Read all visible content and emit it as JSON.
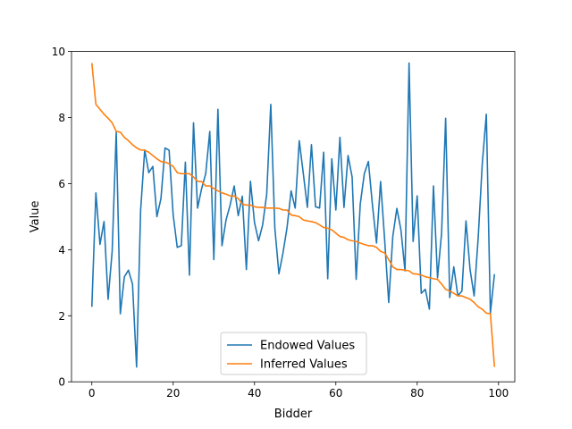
{
  "chart_data": {
    "type": "line",
    "title": "",
    "xlabel": "Bidder",
    "ylabel": "Value",
    "xlim": [
      -5,
      104
    ],
    "ylim": [
      0,
      10
    ],
    "xticks": [
      0,
      20,
      40,
      60,
      80,
      100
    ],
    "yticks": [
      0,
      2,
      4,
      6,
      8,
      10
    ],
    "grid": false,
    "legend_position": "bottom-center",
    "series": [
      {
        "name": "Endowed Values",
        "color": "#1f77b4",
        "values": [
          2.27,
          5.72,
          4.16,
          4.85,
          2.5,
          3.95,
          7.56,
          2.06,
          3.18,
          3.38,
          2.96,
          0.45,
          5.2,
          7.02,
          6.33,
          6.52,
          5.0,
          5.55,
          7.08,
          7.01,
          5.05,
          4.07,
          4.12,
          6.65,
          3.23,
          7.84,
          5.26,
          5.85,
          6.3,
          7.58,
          3.7,
          8.25,
          4.12,
          4.9,
          5.35,
          5.93,
          5.03,
          5.62,
          3.4,
          6.07,
          4.82,
          4.27,
          4.75,
          5.68,
          8.4,
          4.65,
          3.27,
          3.9,
          4.67,
          5.78,
          5.26,
          7.3,
          6.3,
          5.28,
          7.18,
          5.3,
          5.26,
          6.95,
          3.12,
          6.75,
          5.2,
          7.4,
          5.28,
          6.85,
          6.2,
          3.1,
          5.38,
          6.3,
          6.67,
          5.35,
          4.2,
          6.06,
          4.3,
          2.4,
          4.4,
          5.25,
          4.6,
          3.36,
          9.65,
          4.25,
          5.63,
          2.68,
          2.8,
          2.2,
          5.93,
          3.15,
          4.5,
          7.98,
          2.55,
          3.48,
          2.6,
          2.75,
          4.87,
          3.4,
          2.6,
          4.37,
          6.6,
          8.1,
          2.08,
          3.26
        ]
      },
      {
        "name": "Inferred Values",
        "color": "#ff7f0e",
        "values": [
          9.65,
          8.4,
          8.25,
          8.1,
          7.98,
          7.84,
          7.58,
          7.56,
          7.4,
          7.3,
          7.18,
          7.08,
          7.02,
          7.01,
          6.95,
          6.85,
          6.75,
          6.67,
          6.65,
          6.6,
          6.52,
          6.33,
          6.3,
          6.3,
          6.3,
          6.2,
          6.07,
          6.06,
          5.93,
          5.93,
          5.85,
          5.78,
          5.72,
          5.68,
          5.63,
          5.62,
          5.55,
          5.38,
          5.35,
          5.35,
          5.3,
          5.28,
          5.28,
          5.26,
          5.26,
          5.26,
          5.25,
          5.2,
          5.2,
          5.05,
          5.03,
          5.0,
          4.9,
          4.87,
          4.85,
          4.82,
          4.75,
          4.67,
          4.65,
          4.6,
          4.5,
          4.4,
          4.37,
          4.3,
          4.27,
          4.25,
          4.2,
          4.16,
          4.12,
          4.12,
          4.07,
          3.95,
          3.9,
          3.7,
          3.48,
          3.4,
          3.4,
          3.38,
          3.36,
          3.27,
          3.26,
          3.23,
          3.18,
          3.15,
          3.12,
          3.1,
          2.96,
          2.8,
          2.75,
          2.68,
          2.6,
          2.6,
          2.55,
          2.5,
          2.4,
          2.27,
          2.2,
          2.08,
          2.06,
          0.45
        ]
      }
    ]
  }
}
